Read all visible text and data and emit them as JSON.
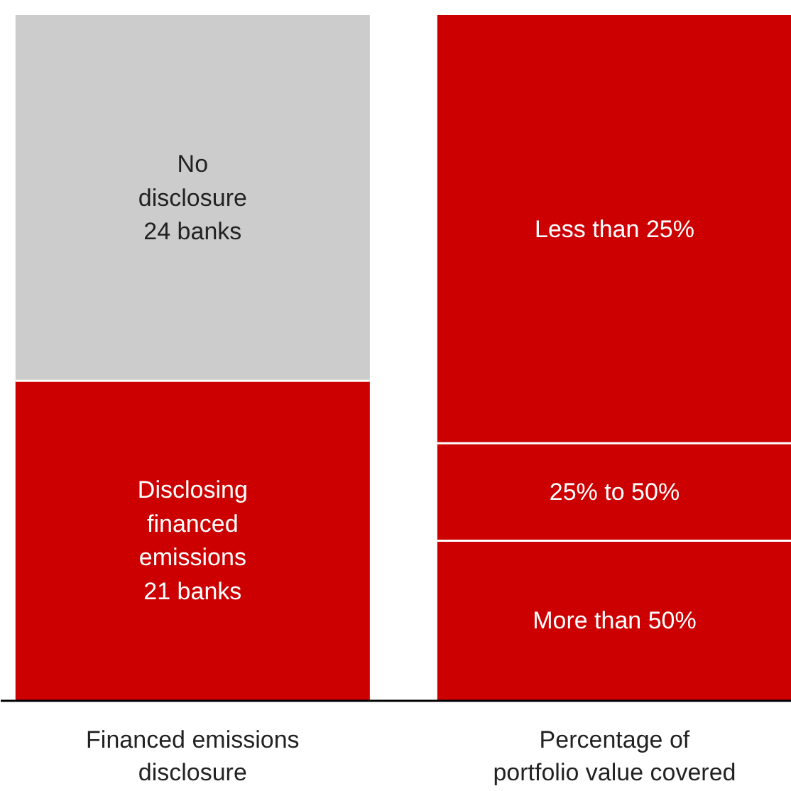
{
  "chart_data": {
    "type": "bar",
    "stacked": true,
    "categories": [
      "Financed emissions\ndisclosure",
      "Percentage of\nportfolio value covered"
    ],
    "series": [
      {
        "name": "Disclosing\nfinanced\nemissions",
        "color": "#cc0000",
        "values": [
          21,
          null
        ],
        "value_labels": [
          "21 banks",
          null
        ]
      },
      {
        "name": "No\ndisclosure",
        "color": "#cccccc",
        "values": [
          24,
          null
        ],
        "value_labels": [
          "24 banks",
          null
        ]
      },
      {
        "name": "More than 50%",
        "color": "#cc0000",
        "values": [
          null,
          10.5
        ]
      },
      {
        "name": "25% to 50%",
        "color": "#cc0000",
        "values": [
          null,
          6.4
        ]
      },
      {
        "name": "Less than 25%",
        "color": "#cc0000",
        "values": [
          null,
          28.1
        ]
      }
    ]
  }
}
